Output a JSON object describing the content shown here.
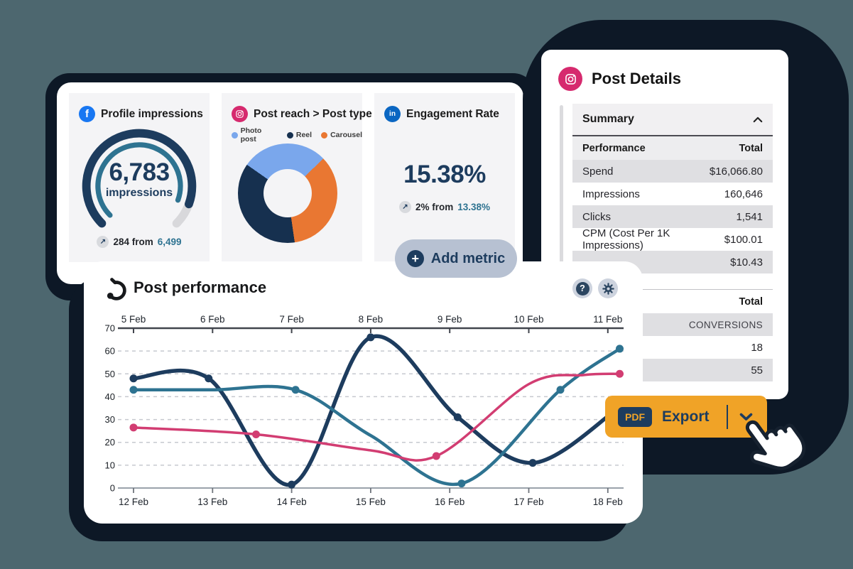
{
  "colors": {
    "background": "#4d676f",
    "blob_navy": "#0d1826",
    "navy": "#1d3c5e",
    "teal": "#2e7391",
    "pink": "#d23d72",
    "light_blue": "#7aa7ec",
    "orange": "#e97732",
    "facebook_blue": "#1877f2",
    "linkedin_blue": "#0a66c2",
    "instagram_pink": "#d62a6e",
    "export_orange": "#f0a327",
    "row_gray": "#dfdfe2",
    "pill_gray": "#b7c1d2"
  },
  "dashboard": {
    "cards": [
      {
        "network": "facebook",
        "icon_text": "f",
        "title": "Profile impressions",
        "value": "6,783",
        "unit": "impressions",
        "delta": {
          "arrow": "↗",
          "prefix": "284 from",
          "highlight": "6,499"
        }
      },
      {
        "network": "instagram",
        "title": "Post reach > Post type",
        "legend": [
          {
            "label": "Photo post",
            "color": "#7aa7ec"
          },
          {
            "label": "Reel",
            "color": "#16304f"
          },
          {
            "label": "Carousel",
            "color": "#e97732"
          }
        ]
      },
      {
        "network": "linkedin",
        "icon_text": "in",
        "title": "Engagement Rate",
        "value": "15.38%",
        "delta": {
          "arrow": "↗",
          "prefix": "2% from",
          "highlight": "13.38%"
        }
      }
    ],
    "add_metric": {
      "plus": "+",
      "label": "Add metric"
    }
  },
  "post_details": {
    "title": "Post Details",
    "summary_label": "Summary",
    "table1": {
      "headers": [
        "Performance",
        "Total"
      ],
      "rows": [
        [
          "Spend",
          "$16,066.80"
        ],
        [
          "Impressions",
          "160,646"
        ],
        [
          "Clicks",
          "1,541"
        ],
        [
          "CPM (Cost Per 1K Impressions)",
          "$100.01"
        ],
        [
          "",
          "$10.43"
        ]
      ]
    },
    "table2": {
      "header": "Total",
      "rows": [
        "CONVERSIONS",
        "18",
        "55"
      ]
    }
  },
  "post_performance": {
    "title": "Post performance",
    "help_icon": "?"
  },
  "export": {
    "badge": "PDF",
    "label": "Export"
  },
  "chart_data": [
    {
      "type": "gauge",
      "title": "Profile impressions",
      "value": 6783,
      "unit": "impressions",
      "previous": 6499,
      "delta": 284,
      "percent_filled": 88
    },
    {
      "type": "pie",
      "title": "Post reach > Post type",
      "donut": true,
      "labels": [
        "Photo post",
        "Carousel",
        "Reel"
      ],
      "values": [
        28,
        35,
        37
      ],
      "colors": [
        "#7aa7ec",
        "#e97732",
        "#16304f"
      ],
      "start_angle_deg": -55,
      "legend_position": "top"
    },
    {
      "type": "line",
      "title": "Post performance",
      "x_axis_top": [
        "5 Feb",
        "6 Feb",
        "7 Feb",
        "8 Feb",
        "9 Feb",
        "10 Feb",
        "11 Feb"
      ],
      "x_axis_bottom": [
        "12 Feb",
        "13 Feb",
        "14 Feb",
        "15 Feb",
        "16 Feb",
        "17 Feb",
        "18 Feb"
      ],
      "x_unit": "days (0 = first tick, 6 = last tick)",
      "ylim": [
        0,
        70
      ],
      "yticks": [
        0,
        10,
        20,
        30,
        40,
        50,
        60,
        70
      ],
      "grid": "horizontal dashed",
      "series": [
        {
          "name": "navy",
          "color": "#1d3c5e",
          "width": 5.5,
          "points": [
            [
              0,
              48
            ],
            [
              0.95,
              48
            ],
            [
              2,
              1.5
            ],
            [
              3,
              66
            ],
            [
              4.1,
              31
            ],
            [
              5.05,
              11
            ],
            [
              6.1,
              34
            ]
          ],
          "markers": [
            [
              0,
              48
            ],
            [
              0.95,
              48
            ],
            [
              2,
              1.5
            ],
            [
              3,
              66
            ],
            [
              4.1,
              31
            ],
            [
              5.05,
              11
            ]
          ]
        },
        {
          "name": "teal",
          "color": "#2e7391",
          "width": 4.5,
          "points": [
            [
              0,
              43
            ],
            [
              1,
              43
            ],
            [
              2.05,
              43
            ],
            [
              3,
              23
            ],
            [
              4.15,
              2
            ],
            [
              5.4,
              43
            ],
            [
              6.15,
              61
            ]
          ],
          "markers": [
            [
              0,
              43
            ],
            [
              2.05,
              43
            ],
            [
              4.15,
              2
            ],
            [
              5.4,
              43
            ],
            [
              6.15,
              61
            ]
          ]
        },
        {
          "name": "pink",
          "color": "#d23d72",
          "width": 3.5,
          "points": [
            [
              0,
              26.5
            ],
            [
              1.55,
              23.5
            ],
            [
              3,
              16.5
            ],
            [
              3.83,
              14
            ],
            [
              5,
              45.5
            ],
            [
              5.7,
              49.5
            ],
            [
              6.15,
              50
            ]
          ],
          "markers": [
            [
              0,
              26.5
            ],
            [
              1.55,
              23.5
            ],
            [
              3.83,
              14
            ],
            [
              6.15,
              50
            ]
          ]
        }
      ]
    }
  ]
}
